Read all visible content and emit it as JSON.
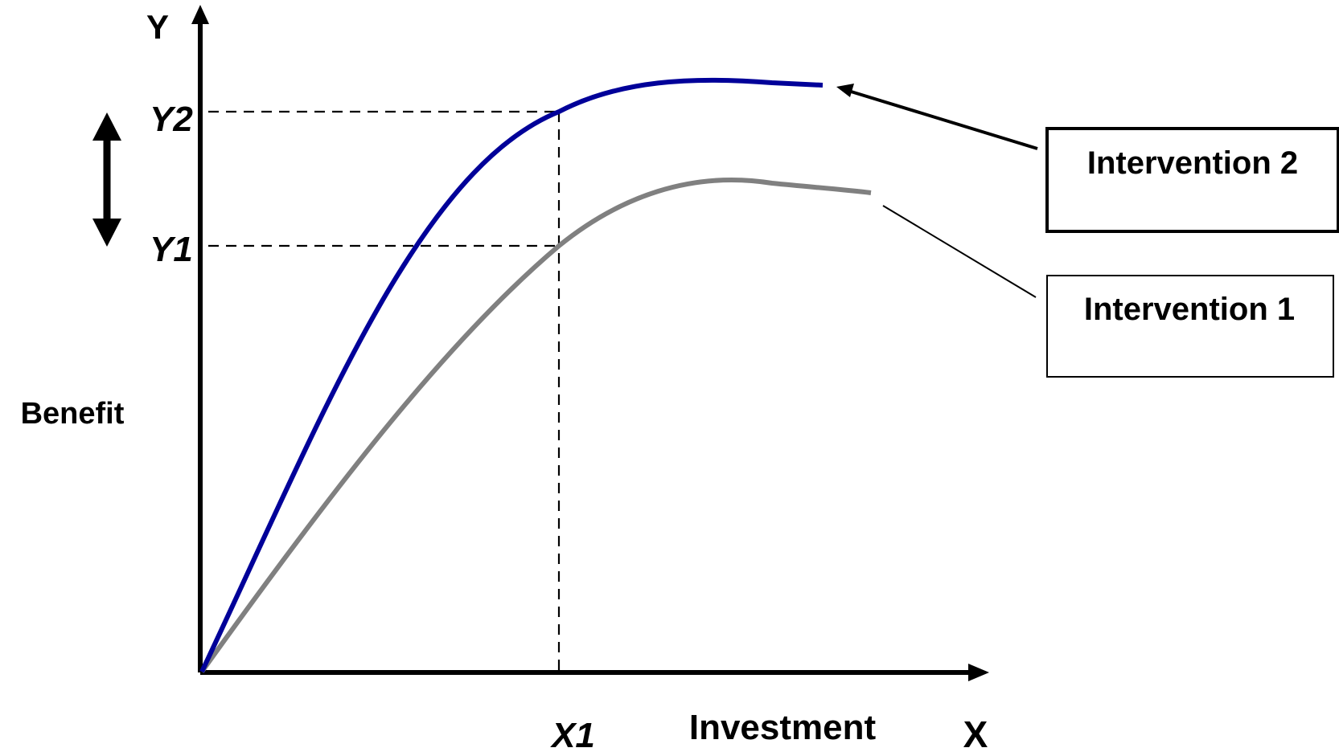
{
  "axes": {
    "y_letter": "Y",
    "x_letter": "X",
    "y_label": "Benefit",
    "x_label": "Investment"
  },
  "markers": {
    "y2": "Y2",
    "y1": "Y1",
    "x1": "X1"
  },
  "legend": {
    "intervention_2": "Intervention 2",
    "intervention_1": "Intervention 1"
  },
  "colors": {
    "intervention_2_curve": "#000099",
    "intervention_1_curve": "#808080",
    "axes": "#000000"
  }
}
